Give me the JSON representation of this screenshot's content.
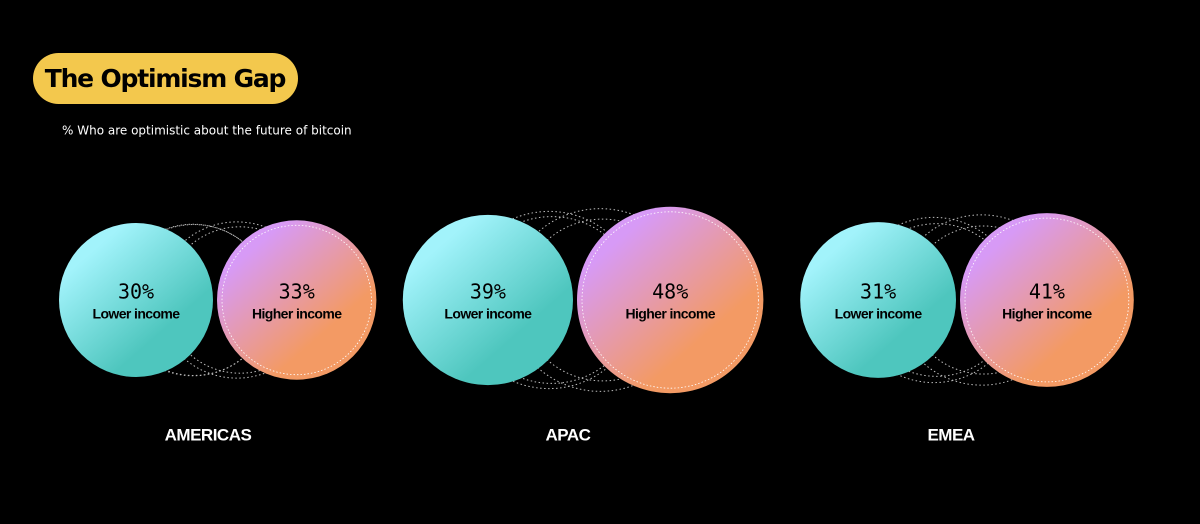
{
  "chart_data": {
    "type": "bubble-pairs",
    "title": "The Optimism Gap",
    "subtitle": "% Who are optimistic about the future of bitcoin",
    "categories": [
      "AMERICAS",
      "APAC",
      "EMEA"
    ],
    "series": [
      {
        "name": "Lower income",
        "gradient": [
          "#a2f3fb",
          "#4ec6be"
        ],
        "values": [
          30,
          39,
          31
        ],
        "value_labels": [
          "30%",
          "39%",
          "31%"
        ]
      },
      {
        "name": "Higher income",
        "gradient": [
          "#d79af6",
          "#f39a64"
        ],
        "values": [
          33,
          48,
          41
        ],
        "value_labels": [
          "33%",
          "48%",
          "41%"
        ]
      }
    ]
  }
}
